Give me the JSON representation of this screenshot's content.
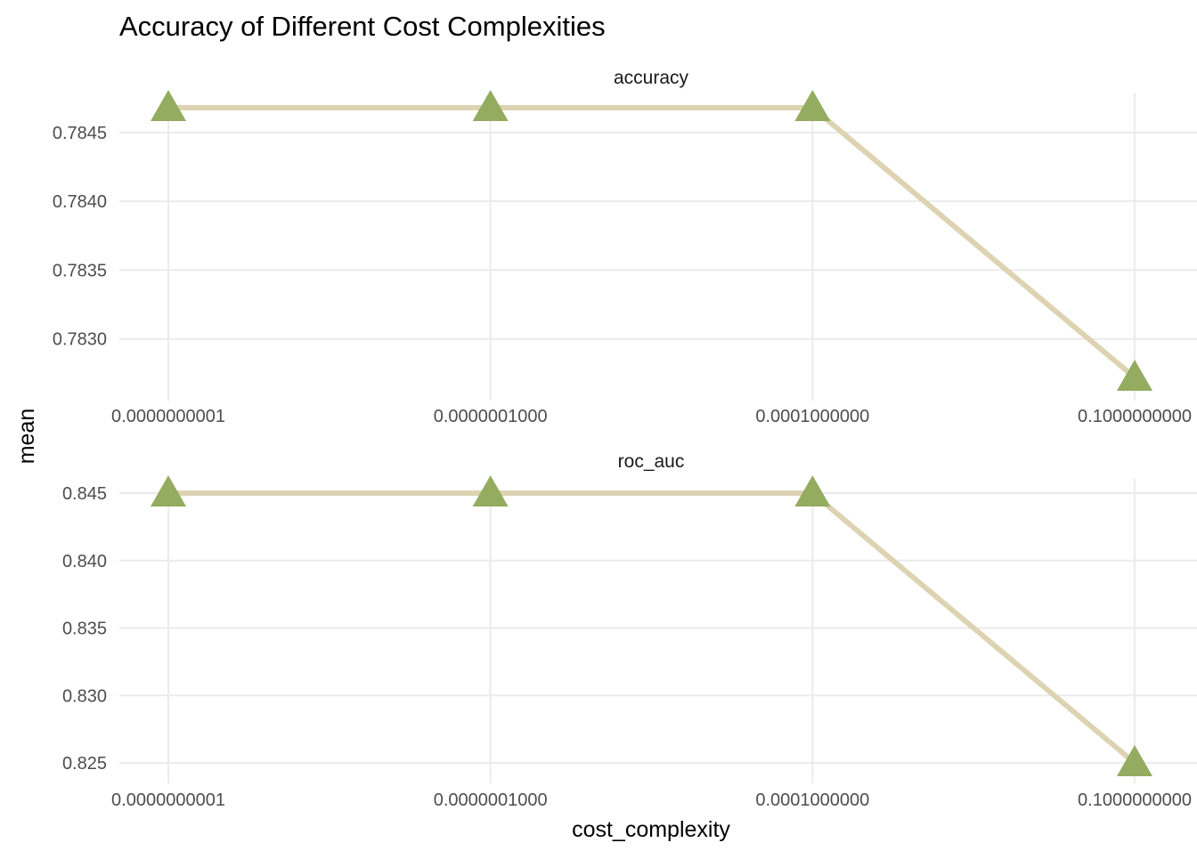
{
  "chart_data": {
    "type": "line",
    "title": "Accuracy of Different Cost Complexities",
    "xlabel": "cost_complexity",
    "ylabel": "mean",
    "x_scale": "log10",
    "x_values": [
      1e-10,
      1e-07,
      0.0001,
      0.1
    ],
    "x_tick_labels": [
      "0.0000000001",
      "0.0000001000",
      "0.0001000000",
      "0.1000000000"
    ],
    "colors": {
      "line": "#DDD3B2",
      "marker": "#93AC60",
      "grid": "#EBEBEB"
    },
    "marker": "triangle",
    "grid": true,
    "panels": [
      {
        "name": "accuracy",
        "values": [
          0.78468,
          0.78468,
          0.78468,
          0.78272
        ],
        "ylim": [
          0.78272,
          0.78468
        ],
        "y_ticks": [
          0.783,
          0.7835,
          0.784,
          0.7845
        ],
        "y_tick_labels": [
          "0.7830",
          "0.7835",
          "0.7840",
          "0.7845"
        ]
      },
      {
        "name": "roc_auc",
        "values": [
          0.845,
          0.845,
          0.845,
          0.825
        ],
        "ylim": [
          0.825,
          0.845
        ],
        "y_ticks": [
          0.825,
          0.83,
          0.835,
          0.84,
          0.845
        ],
        "y_tick_labels": [
          "0.825",
          "0.830",
          "0.835",
          "0.840",
          "0.845"
        ]
      }
    ]
  }
}
